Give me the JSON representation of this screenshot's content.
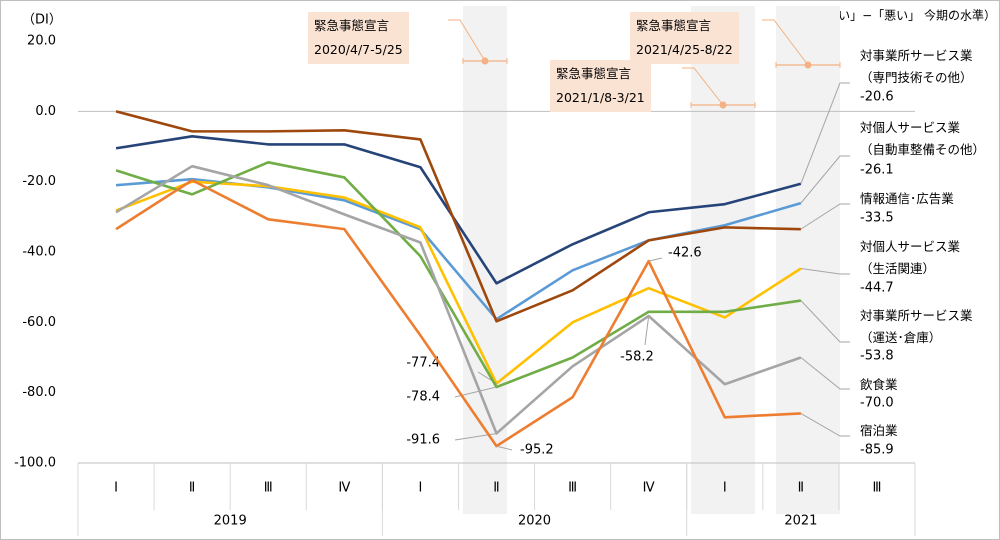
{
  "chart_data": {
    "type": "line",
    "y_axis_label": "（DI）",
    "note": "（「良い」−「悪い」 今期の水準）",
    "categories": [
      "Ⅰ",
      "Ⅱ",
      "Ⅲ",
      "Ⅳ",
      "Ⅰ",
      "Ⅱ",
      "Ⅲ",
      "Ⅳ",
      "Ⅰ",
      "Ⅱ",
      "Ⅲ"
    ],
    "year_groups": [
      "2019",
      "2020",
      "2021"
    ],
    "ylim": [
      -100,
      20
    ],
    "yticks": [
      {
        "value": 20,
        "label": "20.0"
      },
      {
        "value": 0,
        "label": "0.0"
      },
      {
        "value": -20,
        "label": "-20.0"
      },
      {
        "value": -40,
        "label": "-40.0"
      },
      {
        "value": -60,
        "label": "-60.0"
      },
      {
        "value": -80,
        "label": "-80.0"
      },
      {
        "value": -100,
        "label": "-100.0"
      }
    ],
    "grid": false,
    "series": [
      {
        "name": "対事業所サービス業（専門技術その他）",
        "color": "#264478",
        "values": [
          -10.5,
          -7.1,
          -9.4,
          -9.4,
          -15.9,
          -48.9,
          -37.8,
          -28.7,
          -26.4,
          -20.6,
          null
        ],
        "value_labels": [
          null,
          null,
          null,
          null,
          null,
          null,
          null,
          null,
          null,
          "-20.6",
          null
        ]
      },
      {
        "name": "対個人サービス業（自動車整備その他）",
        "color": "#5b9bd5",
        "values": [
          -21,
          -19.3,
          -21.6,
          -25.3,
          -33.5,
          -59.1,
          -45.2,
          -36.7,
          -32.4,
          -26.1,
          null
        ],
        "value_labels": [
          null,
          null,
          null,
          null,
          null,
          null,
          null,
          null,
          null,
          "-26.1",
          null
        ]
      },
      {
        "name": "情報通信･広告業",
        "color": "#9e480e",
        "values": [
          0,
          -5.7,
          -5.7,
          -5.4,
          -8,
          -59.7,
          -50.9,
          -36.7,
          -33,
          -33.5,
          null
        ],
        "value_labels": [
          null,
          null,
          null,
          null,
          null,
          null,
          null,
          null,
          null,
          "-33.5",
          null
        ]
      },
      {
        "name": "対個人サービス業（生活関連）",
        "color": "#ffc000",
        "values": [
          -28.2,
          -20,
          -21.3,
          -24.5,
          -33,
          -77.4,
          -60,
          -50.3,
          -58.6,
          -44.7,
          null
        ],
        "value_labels": [
          null,
          null,
          null,
          null,
          null,
          "-77.4",
          null,
          null,
          null,
          "-44.7",
          null
        ]
      },
      {
        "name": "対事業所サービス業（運送･倉庫）",
        "color": "#70ad47",
        "values": [
          -16.8,
          -23.6,
          -14.5,
          -18.8,
          -41.2,
          -78.4,
          -70,
          -57,
          -57,
          -53.8,
          null
        ],
        "value_labels": [
          null,
          null,
          null,
          null,
          null,
          "-78.4",
          null,
          null,
          null,
          "-53.8",
          null
        ]
      },
      {
        "name": "飲食業",
        "color": "#a5a5a5",
        "values": [
          -28.7,
          -15.6,
          -21,
          -29.3,
          -37.3,
          -91.6,
          -72.5,
          -58.2,
          -77.6,
          -70,
          null
        ],
        "value_labels": [
          null,
          null,
          null,
          null,
          null,
          "-91.6",
          null,
          "-58.2",
          null,
          "-70.0",
          null
        ]
      },
      {
        "name": "宿泊業",
        "color": "#ed7d31",
        "values": [
          -33.5,
          -19.6,
          -30.7,
          -33.5,
          -63.7,
          -95.2,
          -81.3,
          -42.6,
          -87,
          -85.9,
          null
        ],
        "value_labels": [
          null,
          null,
          null,
          null,
          null,
          "-95.2",
          null,
          "-42.6",
          null,
          "-85.9",
          null
        ]
      }
    ],
    "annotations": [
      {
        "title": "緊急事態宣言",
        "period": "2020/4/7-5/25"
      },
      {
        "title": "緊急事態宣言",
        "period": "2021/1/8-3/21"
      },
      {
        "title": "緊急事態宣言",
        "period": "2021/4/25-8/22"
      }
    ]
  }
}
